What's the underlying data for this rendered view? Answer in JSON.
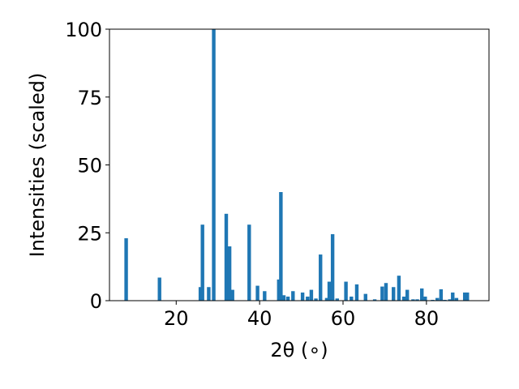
{
  "chart_data": {
    "type": "bar",
    "title": "",
    "xlabel": "2θ (∘)",
    "ylabel": "Intensities (scaled)",
    "xlim": [
      4,
      95
    ],
    "ylim": [
      0,
      100
    ],
    "xticks": [
      20,
      40,
      60,
      80
    ],
    "yticks": [
      0,
      25,
      50,
      75,
      100
    ],
    "grid": false,
    "bar_color": "#1f77b4",
    "x": [
      8.0,
      16.0,
      25.8,
      26.3,
      27.8,
      29.0,
      32.0,
      32.8,
      33.5,
      37.5,
      39.5,
      41.2,
      44.6,
      45.1,
      45.8,
      46.8,
      48.0,
      50.3,
      51.5,
      52.4,
      53.5,
      54.6,
      56.1,
      56.7,
      57.5,
      58.6,
      60.7,
      62.0,
      63.3,
      65.4,
      67.6,
      69.4,
      70.3,
      72.1,
      73.4,
      74.6,
      75.4,
      76.8,
      77.8,
      78.9,
      79.7,
      81.5,
      82.6,
      83.5,
      84.4,
      85.6,
      86.3,
      87.2,
      89.2,
      89.8
    ],
    "values": [
      23,
      8.5,
      5,
      28,
      5,
      100,
      32,
      20,
      4,
      28,
      5.5,
      3.5,
      7.8,
      40,
      2,
      1.5,
      3.5,
      3,
      1.5,
      4,
      0.8,
      17,
      1,
      7,
      24.5,
      0.8,
      7,
      1.5,
      6,
      2.5,
      0.5,
      5.2,
      6.5,
      5,
      9.2,
      1.5,
      4,
      0.5,
      0.5,
      4.5,
      1.5,
      0.3,
      1,
      4.2,
      0.3,
      0.5,
      3,
      1,
      3,
      3
    ]
  }
}
